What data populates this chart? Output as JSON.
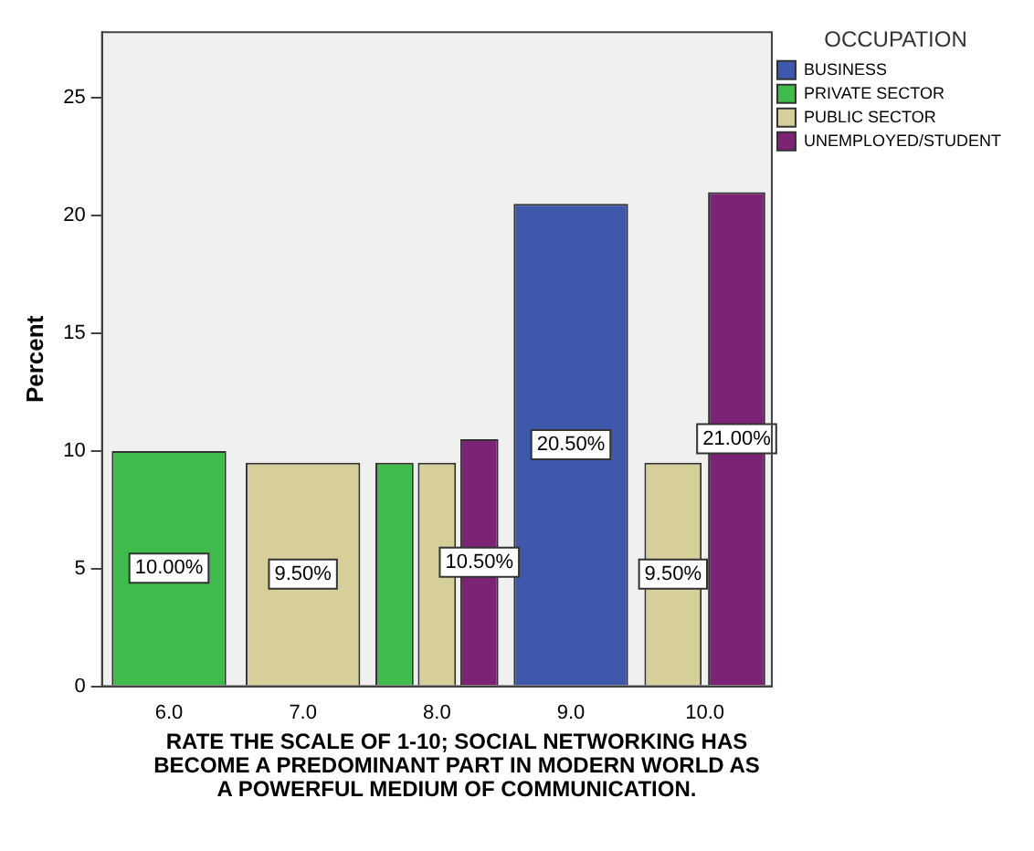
{
  "chart_data": {
    "type": "bar",
    "ylabel": "Percent",
    "xlabel": "RATE THE SCALE OF 1-10; SOCIAL NETWORKING HAS BECOME A PREDOMINANT PART IN MODERN WORLD AS A POWERFUL MEDIUM OF COMMUNICATION.",
    "legend_title": "OCCUPATION",
    "legend": "right",
    "categories": [
      "6.0",
      "7.0",
      "8.0",
      "9.0",
      "10.0"
    ],
    "series": [
      {
        "name": "BUSINESS",
        "color": "#3e58ac",
        "values": [
          null,
          null,
          null,
          20.5,
          null
        ],
        "value_labels": [
          null,
          null,
          null,
          "20.50%",
          null
        ]
      },
      {
        "name": "PRIVATE SECTOR",
        "color": "#3ebb4a",
        "values": [
          10,
          null,
          9.5,
          null,
          null
        ],
        "value_labels": [
          "10.00%",
          null,
          null,
          null,
          null
        ]
      },
      {
        "name": "PUBLIC SECTOR",
        "color": "#d6cf99",
        "values": [
          null,
          9.5,
          9.5,
          null,
          9.5
        ],
        "value_labels": [
          null,
          "9.50%",
          null,
          null,
          "9.50%"
        ]
      },
      {
        "name": "UNEMPLOYED/STUDENT",
        "color": "#7c2376",
        "values": [
          null,
          null,
          10.5,
          null,
          21
        ],
        "value_labels": [
          null,
          null,
          "10.50%",
          null,
          "21.00%"
        ]
      }
    ],
    "ylim": [
      0,
      27.8
    ],
    "yticks": [
      0,
      5,
      10,
      15,
      20,
      25
    ],
    "grid": false
  }
}
